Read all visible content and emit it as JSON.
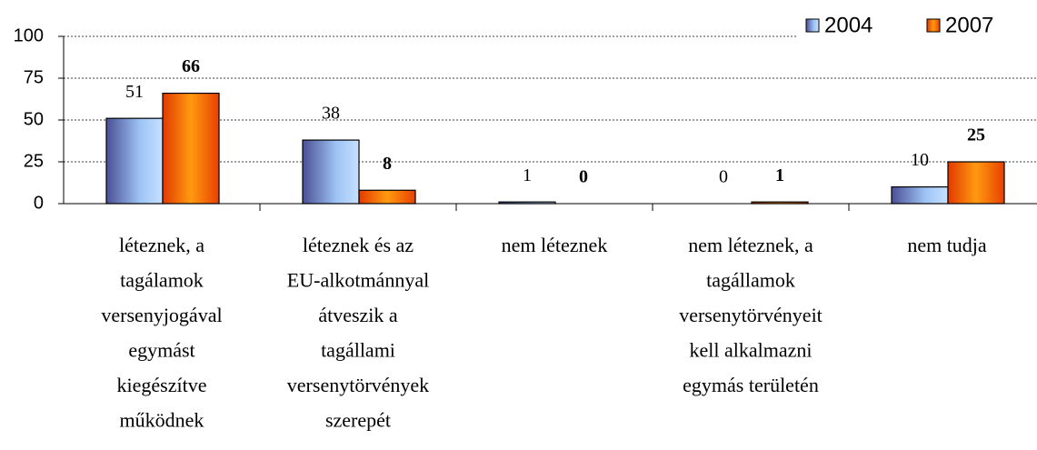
{
  "chart_data": {
    "type": "bar",
    "categories": [
      "léteznek, a\ntagálamok\nversenyjogával\negymást\nkiegészítve\nműködnek",
      "léteznek és az\nEU-alkotmánnyal\nátveszik a\ntagállami\nversenytörvények\nszerepét",
      "nem léteznek",
      "nem léteznek, a\ntagállamok\nversenytörvényeit\nkell alkalmazni\negymás területén",
      "nem tudja"
    ],
    "series": [
      {
        "name": "2004",
        "color": "#6f86d6",
        "values": [
          51,
          38,
          1,
          0,
          10
        ]
      },
      {
        "name": "2007",
        "color": "#ff6a00",
        "values": [
          66,
          8,
          0,
          1,
          25
        ]
      }
    ],
    "ylim": [
      0,
      100
    ],
    "yticks": [
      0,
      25,
      50,
      75,
      100
    ],
    "grid": true,
    "legend": "top-right"
  }
}
